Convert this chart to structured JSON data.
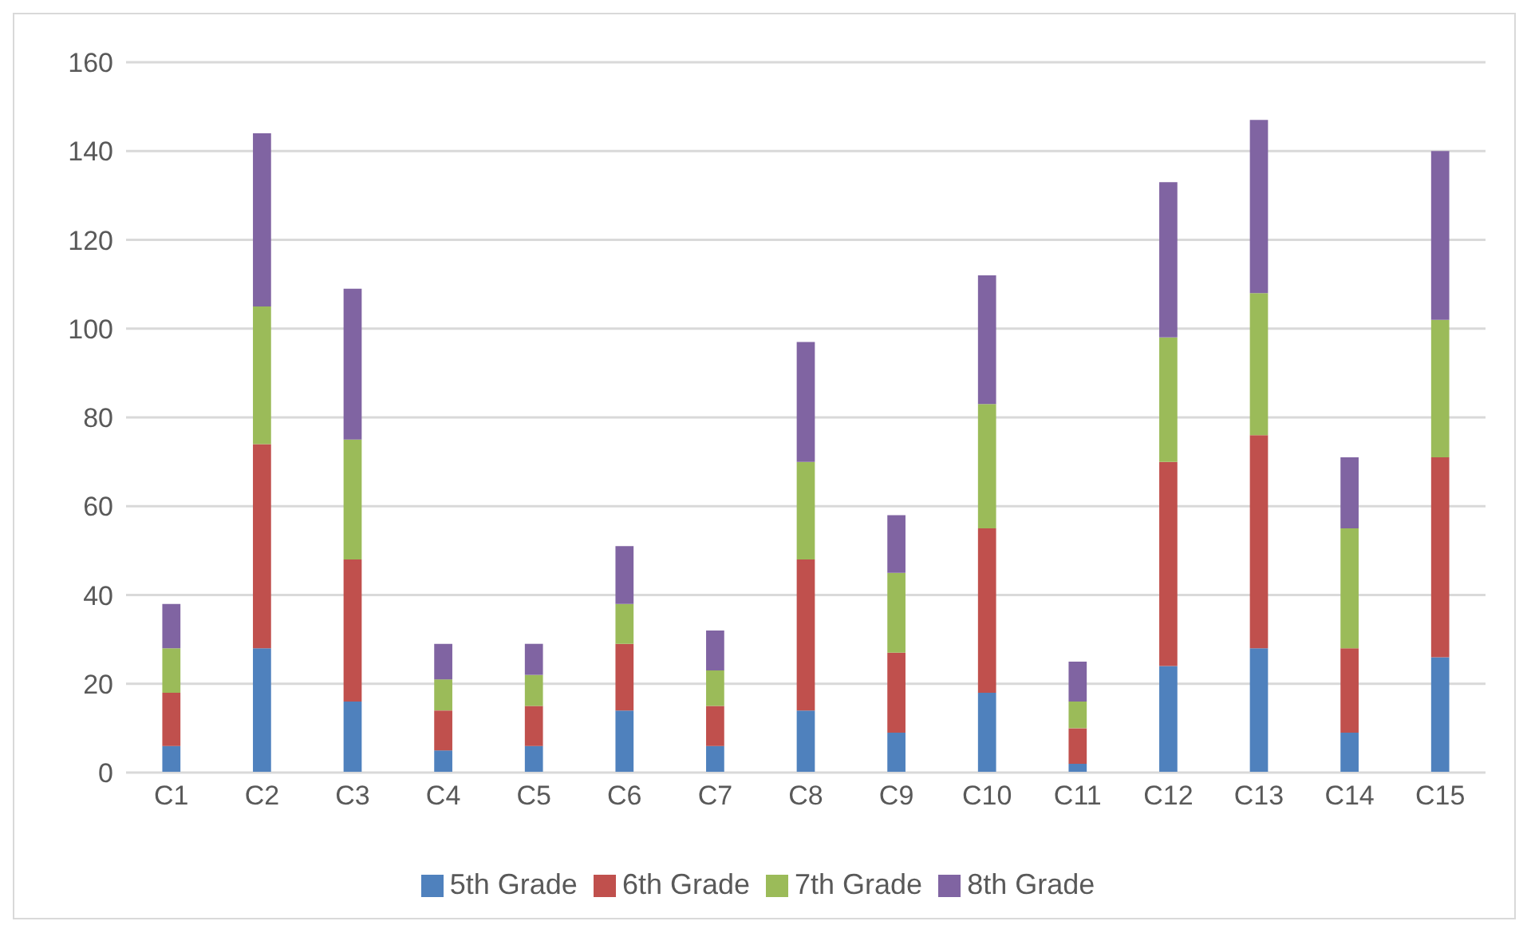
{
  "chart_data": {
    "type": "bar",
    "stacked": true,
    "categories": [
      "C1",
      "C2",
      "C3",
      "C4",
      "C5",
      "C6",
      "C7",
      "C8",
      "C9",
      "C10",
      "C11",
      "C12",
      "C13",
      "C14",
      "C15"
    ],
    "series": [
      {
        "name": "5th Grade",
        "color": "#4f81bd",
        "values": [
          6,
          28,
          16,
          5,
          6,
          14,
          6,
          14,
          9,
          18,
          2,
          24,
          28,
          9,
          26
        ]
      },
      {
        "name": "6th Grade",
        "color": "#c0504d",
        "values": [
          12,
          46,
          32,
          9,
          9,
          15,
          9,
          34,
          18,
          37,
          8,
          46,
          48,
          19,
          45
        ]
      },
      {
        "name": "7th Grade",
        "color": "#9bbb59",
        "values": [
          10,
          31,
          27,
          7,
          7,
          9,
          8,
          22,
          18,
          28,
          6,
          28,
          32,
          27,
          31
        ]
      },
      {
        "name": "8th Grade",
        "color": "#8064a2",
        "values": [
          10,
          39,
          34,
          8,
          7,
          13,
          9,
          27,
          13,
          29,
          9,
          35,
          39,
          16,
          38
        ]
      }
    ],
    "ylim": [
      0,
      160
    ],
    "yticks": [
      0,
      20,
      40,
      60,
      80,
      100,
      120,
      140,
      160
    ],
    "grid": "y",
    "legend": "bottom"
  }
}
